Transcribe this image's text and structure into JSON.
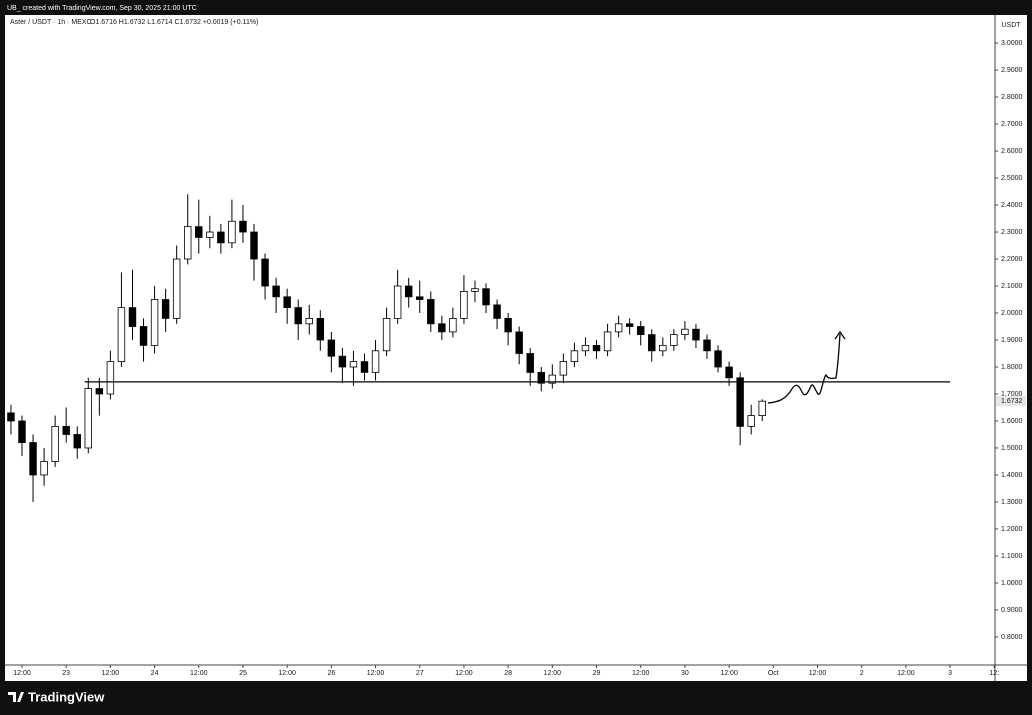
{
  "chart_data": {
    "type": "candlestick",
    "watermark": "UB_ created with TradingView.com, Sep 30, 2025 21:00 UTC",
    "title": "Aster / USDT · 1h · MEXC",
    "ohlc_text": "O1.6716 H1.6732 L1.6714 C1.6732 +0.0019 (+0.11%)",
    "y_axis_unit": "USDT",
    "brand": "TradingView",
    "up_color": "#ffffff",
    "down_color": "#000000",
    "x": [
      -3,
      0,
      3,
      6,
      9,
      12,
      15,
      18,
      21,
      24,
      27,
      30,
      33,
      36,
      39,
      42,
      45,
      48,
      51,
      54,
      57,
      60,
      63,
      66,
      69,
      72,
      75,
      78,
      81,
      84,
      87,
      90,
      93,
      96,
      99,
      102,
      105,
      108,
      111,
      114,
      117,
      120,
      123,
      126,
      129,
      132,
      135,
      138,
      141,
      144,
      147,
      150,
      153,
      156,
      159,
      162,
      165,
      168,
      171,
      174,
      177,
      180,
      183,
      186,
      189,
      192,
      195,
      198,
      201
    ],
    "open": [
      1.63,
      1.6,
      1.52,
      1.4,
      1.45,
      1.58,
      1.55,
      1.5,
      1.72,
      1.7,
      1.82,
      2.02,
      1.95,
      1.88,
      2.05,
      1.98,
      2.2,
      2.32,
      2.28,
      2.3,
      2.26,
      2.34,
      2.3,
      2.2,
      2.1,
      2.06,
      2.02,
      1.96,
      1.98,
      1.9,
      1.84,
      1.8,
      1.82,
      1.78,
      1.86,
      1.98,
      2.1,
      2.06,
      2.05,
      1.96,
      1.93,
      1.98,
      2.08,
      2.09,
      2.03,
      1.98,
      1.93,
      1.85,
      1.78,
      1.74,
      1.77,
      1.82,
      1.86,
      1.88,
      1.86,
      1.93,
      1.96,
      1.95,
      1.92,
      1.86,
      1.88,
      1.92,
      1.94,
      1.9,
      1.86,
      1.8,
      1.76,
      1.58,
      1.62
    ],
    "high": [
      1.66,
      1.62,
      1.55,
      1.5,
      1.62,
      1.65,
      1.58,
      1.76,
      1.76,
      1.86,
      2.15,
      2.16,
      1.98,
      2.1,
      2.09,
      2.25,
      2.44,
      2.42,
      2.36,
      2.33,
      2.42,
      2.4,
      2.33,
      2.22,
      2.13,
      2.09,
      2.05,
      2.03,
      2.01,
      1.93,
      1.87,
      1.86,
      1.85,
      1.9,
      2.02,
      2.16,
      2.13,
      2.12,
      2.08,
      1.99,
      2.02,
      2.14,
      2.12,
      2.11,
      2.05,
      2.0,
      1.95,
      1.87,
      1.8,
      1.81,
      1.85,
      1.89,
      1.91,
      1.9,
      1.96,
      1.99,
      1.98,
      1.97,
      1.94,
      1.91,
      1.94,
      1.97,
      1.96,
      1.92,
      1.88,
      1.82,
      1.78,
      1.66,
      1.68
    ],
    "low": [
      1.55,
      1.47,
      1.3,
      1.36,
      1.43,
      1.52,
      1.46,
      1.48,
      1.62,
      1.68,
      1.8,
      1.9,
      1.82,
      1.85,
      1.93,
      1.96,
      2.18,
      2.22,
      2.24,
      2.22,
      2.24,
      2.26,
      2.12,
      2.05,
      2.0,
      1.96,
      1.9,
      1.92,
      1.86,
      1.78,
      1.74,
      1.73,
      1.75,
      1.75,
      1.84,
      1.96,
      2.02,
      2.0,
      1.93,
      1.9,
      1.91,
      1.96,
      2.04,
      2.0,
      1.94,
      1.88,
      1.81,
      1.73,
      1.71,
      1.72,
      1.74,
      1.8,
      1.84,
      1.83,
      1.84,
      1.91,
      1.92,
      1.88,
      1.82,
      1.84,
      1.86,
      1.9,
      1.87,
      1.83,
      1.78,
      1.73,
      1.51,
      1.55,
      1.6
    ],
    "close": [
      1.6,
      1.52,
      1.4,
      1.45,
      1.58,
      1.55,
      1.5,
      1.72,
      1.7,
      1.82,
      2.02,
      1.95,
      1.88,
      2.05,
      1.98,
      2.2,
      2.32,
      2.28,
      2.3,
      2.26,
      2.34,
      2.3,
      2.2,
      2.1,
      2.06,
      2.02,
      1.96,
      1.98,
      1.9,
      1.84,
      1.8,
      1.82,
      1.78,
      1.86,
      1.98,
      2.1,
      2.06,
      2.05,
      1.96,
      1.93,
      1.98,
      2.08,
      2.09,
      2.03,
      1.98,
      1.93,
      1.85,
      1.78,
      1.74,
      1.77,
      1.82,
      1.86,
      1.88,
      1.86,
      1.93,
      1.96,
      1.95,
      1.92,
      1.86,
      1.88,
      1.92,
      1.94,
      1.9,
      1.86,
      1.8,
      1.76,
      1.58,
      1.62,
      1.6732
    ],
    "last_price": 1.6732,
    "hline": {
      "y": 1.745,
      "x_start": 17,
      "x_end": 252
    },
    "xlim": [
      -3.8,
      264.2
    ],
    "xticks": [
      {
        "value": 0,
        "label": "12:00"
      },
      {
        "value": 12,
        "label": "23"
      },
      {
        "value": 24,
        "label": "12:00"
      },
      {
        "value": 36,
        "label": "24"
      },
      {
        "value": 48,
        "label": "12:00"
      },
      {
        "value": 60,
        "label": "25"
      },
      {
        "value": 72,
        "label": "12:00"
      },
      {
        "value": 84,
        "label": "26"
      },
      {
        "value": 96,
        "label": "12:00"
      },
      {
        "value": 108,
        "label": "27"
      },
      {
        "value": 120,
        "label": "12:00"
      },
      {
        "value": 132,
        "label": "28"
      },
      {
        "value": 144,
        "label": "12:00"
      },
      {
        "value": 156,
        "label": "29"
      },
      {
        "value": 168,
        "label": "12:00"
      },
      {
        "value": 180,
        "label": "30"
      },
      {
        "value": 192,
        "label": "12:00"
      },
      {
        "value": 204,
        "label": "Oct"
      },
      {
        "value": 216,
        "label": "12:00"
      },
      {
        "value": 228,
        "label": "2"
      },
      {
        "value": 240,
        "label": "12:00"
      },
      {
        "value": 252,
        "label": "3"
      },
      {
        "value": 264,
        "label": "12:"
      }
    ],
    "ylim": [
      0.696,
      3.104
    ],
    "yticks": [
      {
        "value": 0.8,
        "label": "0.8000"
      },
      {
        "value": 0.9,
        "label": "0.9000"
      },
      {
        "value": 1.0,
        "label": "1.0000"
      },
      {
        "value": 1.1,
        "label": "1.1000"
      },
      {
        "value": 1.2,
        "label": "1.2000"
      },
      {
        "value": 1.3,
        "label": "1.3000"
      },
      {
        "value": 1.4,
        "label": "1.4000"
      },
      {
        "value": 1.5,
        "label": "1.5000"
      },
      {
        "value": 1.6,
        "label": "1.6000"
      },
      {
        "value": 1.7,
        "label": "1.7000"
      },
      {
        "value": 1.8,
        "label": "1.8000"
      },
      {
        "value": 1.9,
        "label": "1.9000"
      },
      {
        "value": 2.0,
        "label": "2.0000"
      },
      {
        "value": 2.1,
        "label": "2.1000"
      },
      {
        "value": 2.2,
        "label": "2.2000"
      },
      {
        "value": 2.3,
        "label": "2.3000"
      },
      {
        "value": 2.4,
        "label": "2.4000"
      },
      {
        "value": 2.5,
        "label": "2.5000"
      },
      {
        "value": 2.6,
        "label": "2.6000"
      },
      {
        "value": 2.7,
        "label": "2.7000"
      },
      {
        "value": 2.8,
        "label": "2.8000"
      },
      {
        "value": 2.9,
        "label": "2.9000"
      },
      {
        "value": 3.0,
        "label": "3.0000"
      }
    ]
  }
}
